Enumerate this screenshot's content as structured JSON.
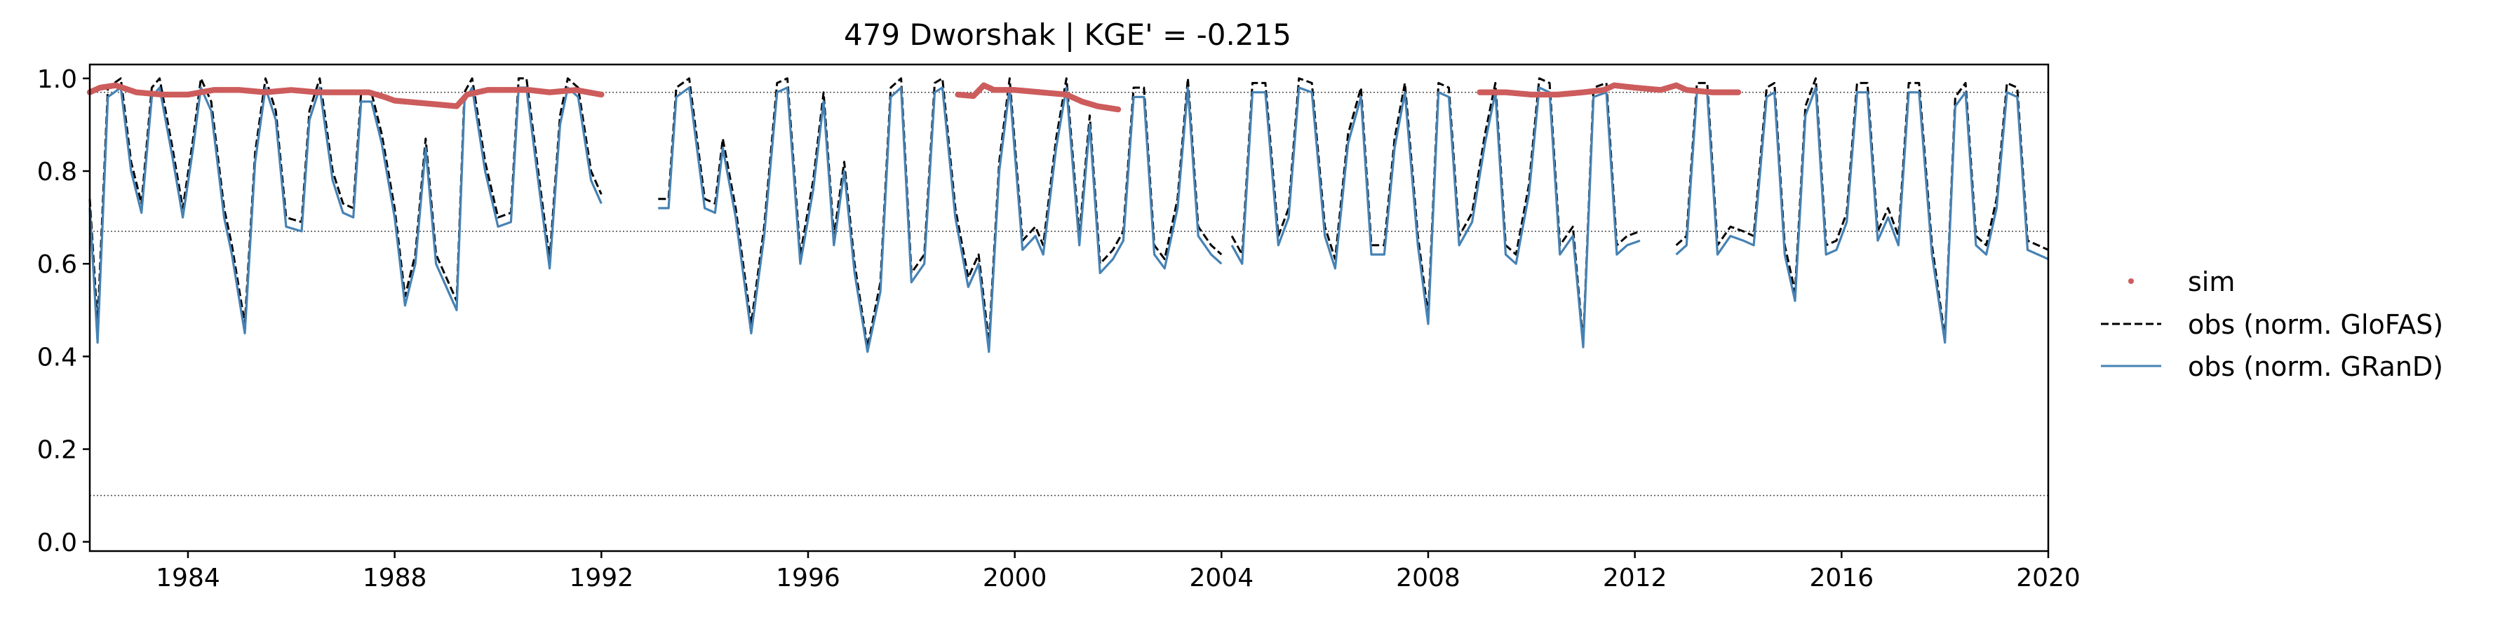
{
  "chart_data": {
    "type": "line",
    "title": "479  Dworshak | KGE' = -0.215",
    "xlabel": "",
    "ylabel": "",
    "xlim": [
      1982.1,
      2020.0
    ],
    "ylim": [
      -0.02,
      1.03
    ],
    "x_ticks": [
      1984,
      1988,
      1992,
      1996,
      2000,
      2004,
      2008,
      2012,
      2016,
      2020
    ],
    "x_tick_labels": [
      "1984",
      "1988",
      "1992",
      "1996",
      "2000",
      "2004",
      "2008",
      "2012",
      "2016",
      "2020"
    ],
    "y_ticks": [
      0.0,
      0.2,
      0.4,
      0.6,
      0.8,
      1.0
    ],
    "y_tick_labels": [
      "0.0",
      "0.2",
      "0.4",
      "0.6",
      "0.8",
      "1.0"
    ],
    "reference_lines": [
      0.97,
      0.67,
      0.1
    ],
    "grid": false,
    "legend_position": "right, outside plot",
    "colors": {
      "sim": "#cd5c5c",
      "glofas": "#000000",
      "grand": "#4682b4",
      "reference": "#555555"
    },
    "series": [
      {
        "name": "sim",
        "style": "points",
        "segments": [
          {
            "x": [
              1982.1,
              1982.3,
              1982.6,
              1983.0,
              1983.5,
              1984.0,
              1984.5,
              1985.0,
              1985.5,
              1986.0,
              1986.5,
              1987.0,
              1987.5,
              1987.8,
              1988.0,
              1988.5,
              1989.0,
              1989.2,
              1989.4,
              1989.8,
              1990.2,
              1990.6,
              1991.0,
              1991.5,
              1992.0
            ],
            "y": [
              0.97,
              0.98,
              0.985,
              0.97,
              0.965,
              0.965,
              0.975,
              0.975,
              0.97,
              0.975,
              0.97,
              0.97,
              0.97,
              0.96,
              0.952,
              0.947,
              0.942,
              0.94,
              0.965,
              0.975,
              0.975,
              0.975,
              0.97,
              0.975,
              0.965
            ]
          },
          {
            "x": [
              1998.9,
              1999.2,
              1999.4,
              1999.6,
              2000.0,
              2000.5,
              2001.0,
              2001.3,
              2001.6,
              2002.0
            ],
            "y": [
              0.965,
              0.962,
              0.985,
              0.975,
              0.975,
              0.97,
              0.965,
              0.95,
              0.94,
              0.933
            ]
          },
          {
            "x": [
              2009.0,
              2009.5,
              2010.0,
              2010.5,
              2011.0,
              2011.4,
              2011.6,
              2012.0,
              2012.5,
              2012.8,
              2013.0,
              2013.5,
              2014.0
            ],
            "y": [
              0.97,
              0.97,
              0.965,
              0.965,
              0.97,
              0.975,
              0.985,
              0.98,
              0.975,
              0.985,
              0.975,
              0.97,
              0.97
            ]
          }
        ]
      },
      {
        "name": "obs (norm. GloFAS)",
        "style": "dashed",
        "segments": [
          {
            "x": [
              1982.1,
              1982.25,
              1982.45,
              1982.7,
              1982.9,
              1983.1,
              1983.3,
              1983.45,
              1983.7,
              1983.9,
              1984.1,
              1984.25,
              1984.45,
              1984.7,
              1984.85,
              1985.1,
              1985.3,
              1985.5,
              1985.7,
              1985.9,
              1986.2,
              1986.35,
              1986.55,
              1986.8,
              1987.0,
              1987.2,
              1987.35,
              1987.55,
              1987.75,
              1988.0,
              1988.2,
              1988.4,
              1988.6,
              1988.8,
              1989.0,
              1989.2,
              1989.35,
              1989.5,
              1989.75,
              1990.0,
              1990.25,
              1990.4,
              1990.55,
              1990.8,
              1991.0,
              1991.2,
              1991.35,
              1991.55,
              1991.8,
              1992.0
            ],
            "y": [
              0.74,
              0.47,
              0.98,
              1.0,
              0.82,
              0.73,
              0.98,
              1.0,
              0.85,
              0.72,
              0.87,
              1.0,
              0.95,
              0.72,
              0.64,
              0.47,
              0.84,
              1.0,
              0.93,
              0.7,
              0.69,
              0.93,
              1.0,
              0.8,
              0.73,
              0.72,
              0.97,
              0.97,
              0.88,
              0.72,
              0.53,
              0.62,
              0.87,
              0.62,
              0.57,
              0.52,
              0.97,
              1.0,
              0.82,
              0.7,
              0.71,
              1.0,
              1.0,
              0.78,
              0.61,
              0.92,
              1.0,
              0.98,
              0.8,
              0.75
            ]
          },
          {
            "x": [
              1993.1,
              1993.3,
              1993.45,
              1993.7,
              1994.0,
              1994.2,
              1994.35,
              1994.6,
              1994.9,
              1995.15,
              1995.4,
              1995.6,
              1995.85,
              1996.1,
              1996.3,
              1996.5,
              1996.7,
              1996.9,
              1997.15,
              1997.4,
              1997.6,
              1997.8,
              1998.0,
              1998.25,
              1998.45,
              1998.6,
              1998.85,
              1999.1,
              1999.3,
              1999.5,
              1999.7,
              1999.9,
              2000.15,
              2000.4,
              2000.55,
              2000.8,
              2001.0,
              2001.25,
              2001.45,
              2001.65,
              2001.9,
              2002.1,
              2002.3,
              2002.5,
              2002.7,
              2002.9,
              2003.15,
              2003.35,
              2003.55,
              2003.8,
              2004.0
            ],
            "y": [
              0.74,
              0.74,
              0.98,
              1.0,
              0.74,
              0.73,
              0.87,
              0.72,
              0.47,
              0.68,
              0.99,
              1.0,
              0.62,
              0.78,
              0.97,
              0.66,
              0.82,
              0.6,
              0.42,
              0.56,
              0.98,
              1.0,
              0.58,
              0.62,
              0.99,
              1.0,
              0.72,
              0.57,
              0.62,
              0.43,
              0.82,
              1.0,
              0.65,
              0.68,
              0.64,
              0.87,
              1.0,
              0.66,
              0.92,
              0.6,
              0.63,
              0.67,
              0.98,
              0.98,
              0.64,
              0.61,
              0.74,
              1.0,
              0.68,
              0.64,
              0.62
            ]
          },
          {
            "x": [
              2004.2,
              2004.4,
              2004.6,
              2004.85,
              2005.1,
              2005.3,
              2005.5,
              2005.75,
              2006.0,
              2006.2,
              2006.45,
              2006.7,
              2006.9,
              2007.15,
              2007.35,
              2007.55,
              2007.8,
              2008.0,
              2008.2,
              2008.4,
              2008.6,
              2008.85,
              2009.1,
              2009.3,
              2009.5,
              2009.7,
              2009.95,
              2010.15,
              2010.35,
              2010.55,
              2010.8,
              2011.0,
              2011.2,
              2011.45,
              2011.65,
              2011.85,
              2012.1
            ],
            "y": [
              0.66,
              0.62,
              0.99,
              0.99,
              0.66,
              0.72,
              1.0,
              0.99,
              0.68,
              0.61,
              0.88,
              0.98,
              0.64,
              0.64,
              0.87,
              0.99,
              0.66,
              0.49,
              0.99,
              0.98,
              0.66,
              0.71,
              0.88,
              0.99,
              0.64,
              0.62,
              0.77,
              1.0,
              0.99,
              0.64,
              0.68,
              0.43,
              0.98,
              0.99,
              0.64,
              0.66,
              0.67
            ]
          },
          {
            "x": [
              2012.8,
              2013.0,
              2013.2,
              2013.4,
              2013.6,
              2013.85,
              2014.1,
              2014.3,
              2014.55,
              2014.7,
              2014.9,
              2015.1,
              2015.3,
              2015.5,
              2015.7,
              2015.9,
              2016.1,
              2016.3,
              2016.5,
              2016.7,
              2016.9,
              2017.1,
              2017.3,
              2017.5,
              2017.75,
              2018.0,
              2018.2,
              2018.4,
              2018.6,
              2018.8,
              2019.0,
              2019.2,
              2019.4,
              2019.6,
              2019.8,
              2020.0
            ],
            "y": [
              0.64,
              0.66,
              0.99,
              0.99,
              0.64,
              0.68,
              0.67,
              0.66,
              0.98,
              0.99,
              0.64,
              0.54,
              0.94,
              1.0,
              0.64,
              0.65,
              0.71,
              0.99,
              0.99,
              0.67,
              0.72,
              0.66,
              0.99,
              0.99,
              0.64,
              0.44,
              0.96,
              0.99,
              0.66,
              0.64,
              0.74,
              0.99,
              0.98,
              0.65,
              0.64,
              0.63
            ]
          }
        ]
      },
      {
        "name": "obs (norm. GRanD)",
        "style": "solid",
        "segments": [
          {
            "x": [
              1982.1,
              1982.25,
              1982.45,
              1982.7,
              1982.9,
              1983.1,
              1983.3,
              1983.45,
              1983.7,
              1983.9,
              1984.1,
              1984.25,
              1984.45,
              1984.7,
              1984.85,
              1985.1,
              1985.3,
              1985.5,
              1985.7,
              1985.9,
              1986.2,
              1986.35,
              1986.55,
              1986.8,
              1987.0,
              1987.2,
              1987.35,
              1987.55,
              1987.75,
              1988.0,
              1988.2,
              1988.4,
              1988.6,
              1988.8,
              1989.0,
              1989.2,
              1989.35,
              1989.5,
              1989.75,
              1990.0,
              1990.25,
              1990.4,
              1990.55,
              1990.8,
              1991.0,
              1991.2,
              1991.35,
              1991.55,
              1991.8,
              1992.0
            ],
            "y": [
              0.72,
              0.43,
              0.96,
              0.98,
              0.8,
              0.71,
              0.96,
              0.98,
              0.83,
              0.7,
              0.85,
              0.98,
              0.93,
              0.7,
              0.62,
              0.45,
              0.82,
              0.98,
              0.91,
              0.68,
              0.67,
              0.91,
              0.98,
              0.78,
              0.71,
              0.7,
              0.95,
              0.95,
              0.86,
              0.7,
              0.51,
              0.6,
              0.85,
              0.6,
              0.55,
              0.5,
              0.95,
              0.98,
              0.8,
              0.68,
              0.69,
              0.98,
              0.98,
              0.76,
              0.59,
              0.9,
              0.98,
              0.96,
              0.78,
              0.73
            ]
          },
          {
            "x": [
              1993.1,
              1993.3,
              1993.45,
              1993.7,
              1994.0,
              1994.2,
              1994.35,
              1994.6,
              1994.9,
              1995.15,
              1995.4,
              1995.6,
              1995.85,
              1996.1,
              1996.3,
              1996.5,
              1996.7,
              1996.9,
              1997.15,
              1997.4,
              1997.6,
              1997.8,
              1998.0,
              1998.25,
              1998.45,
              1998.6,
              1998.85,
              1999.1,
              1999.3,
              1999.5,
              1999.7,
              1999.9,
              2000.15,
              2000.4,
              2000.55,
              2000.8,
              2001.0,
              2001.25,
              2001.45,
              2001.65,
              2001.9,
              2002.1,
              2002.3,
              2002.5,
              2002.7,
              2002.9,
              2003.15,
              2003.35,
              2003.55,
              2003.8,
              2004.0
            ],
            "y": [
              0.72,
              0.72,
              0.96,
              0.98,
              0.72,
              0.71,
              0.85,
              0.7,
              0.45,
              0.66,
              0.97,
              0.98,
              0.6,
              0.76,
              0.95,
              0.64,
              0.8,
              0.58,
              0.41,
              0.54,
              0.96,
              0.98,
              0.56,
              0.6,
              0.97,
              0.98,
              0.7,
              0.55,
              0.6,
              0.41,
              0.8,
              0.98,
              0.63,
              0.66,
              0.62,
              0.85,
              0.98,
              0.64,
              0.9,
              0.58,
              0.61,
              0.65,
              0.96,
              0.96,
              0.62,
              0.59,
              0.72,
              0.98,
              0.66,
              0.62,
              0.6
            ]
          },
          {
            "x": [
              2004.2,
              2004.4,
              2004.6,
              2004.85,
              2005.1,
              2005.3,
              2005.5,
              2005.75,
              2006.0,
              2006.2,
              2006.45,
              2006.7,
              2006.9,
              2007.15,
              2007.35,
              2007.55,
              2007.8,
              2008.0,
              2008.2,
              2008.4,
              2008.6,
              2008.85,
              2009.1,
              2009.3,
              2009.5,
              2009.7,
              2009.95,
              2010.15,
              2010.35,
              2010.55,
              2010.8,
              2011.0,
              2011.2,
              2011.45,
              2011.65,
              2011.85,
              2012.1
            ],
            "y": [
              0.64,
              0.6,
              0.97,
              0.97,
              0.64,
              0.7,
              0.98,
              0.97,
              0.66,
              0.59,
              0.86,
              0.96,
              0.62,
              0.62,
              0.85,
              0.97,
              0.64,
              0.47,
              0.97,
              0.96,
              0.64,
              0.69,
              0.86,
              0.97,
              0.62,
              0.6,
              0.75,
              0.98,
              0.97,
              0.62,
              0.66,
              0.42,
              0.96,
              0.97,
              0.62,
              0.64,
              0.65
            ]
          },
          {
            "x": [
              2012.8,
              2013.0,
              2013.2,
              2013.4,
              2013.6,
              2013.85,
              2014.1,
              2014.3,
              2014.55,
              2014.7,
              2014.9,
              2015.1,
              2015.3,
              2015.5,
              2015.7,
              2015.9,
              2016.1,
              2016.3,
              2016.5,
              2016.7,
              2016.9,
              2017.1,
              2017.3,
              2017.5,
              2017.75,
              2018.0,
              2018.2,
              2018.4,
              2018.6,
              2018.8,
              2019.0,
              2019.2,
              2019.4,
              2019.6,
              2019.8,
              2020.0
            ],
            "y": [
              0.62,
              0.64,
              0.97,
              0.97,
              0.62,
              0.66,
              0.65,
              0.64,
              0.96,
              0.97,
              0.62,
              0.52,
              0.92,
              0.98,
              0.62,
              0.63,
              0.69,
              0.97,
              0.97,
              0.65,
              0.7,
              0.64,
              0.97,
              0.97,
              0.62,
              0.43,
              0.94,
              0.97,
              0.64,
              0.62,
              0.72,
              0.97,
              0.96,
              0.63,
              0.62,
              0.61
            ]
          }
        ]
      }
    ]
  }
}
